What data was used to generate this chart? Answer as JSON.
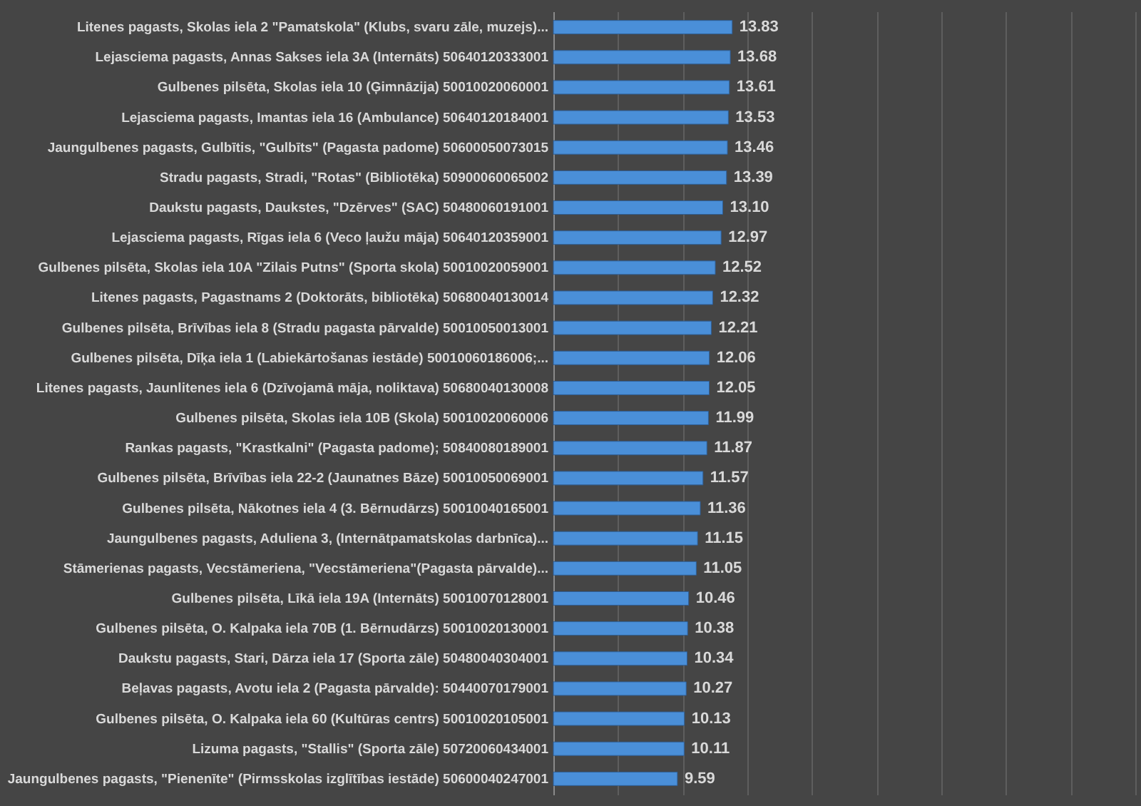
{
  "chart_data": {
    "type": "bar",
    "orientation": "horizontal",
    "categories": [
      "Litenes pagasts, Skolas iela 2 \"Pamatskola\" (Klubs, svaru zāle, muzejs)...",
      "Lejasciema pagasts, Annas Sakses iela 3A (Internāts) 50640120333001",
      "Gulbenes pilsēta, Skolas iela 10 (Ģimnāzija) 50010020060001",
      "Lejasciema pagasts, Imantas iela 16 (Ambulance) 50640120184001",
      "Jaungulbenes pagasts, Gulbītis, \"Gulbīts\" (Pagasta padome) 50600050073015",
      "Stradu pagasts, Stradi, \"Rotas\" (Bibliotēka) 50900060065002",
      "Daukstu pagasts, Daukstes, \"Dzērves\" (SAC) 50480060191001",
      "Lejasciema pagasts, Rīgas iela 6 (Veco ļaužu māja) 50640120359001",
      "Gulbenes pilsēta, Skolas iela 10A \"Zilais Putns\" (Sporta skola) 50010020059001",
      "Litenes pagasts, Pagastnams 2 (Doktorāts, bibliotēka) 50680040130014",
      "Gulbenes pilsēta, Brīvības iela 8 (Stradu pagasta pārvalde) 50010050013001",
      "Gulbenes pilsēta, Dīķa iela 1 (Labiekārtošanas iestāde) 50010060186006;...",
      "Litenes pagasts, Jaunlitenes iela 6 (Dzīvojamā māja, noliktava) 50680040130008",
      "Gulbenes pilsēta, Skolas iela 10B (Skola) 50010020060006",
      "Rankas pagasts, \"Krastkalni\" (Pagasta padome); 50840080189001",
      "Gulbenes pilsēta, Brīvības iela 22-2 (Jaunatnes Bāze) 50010050069001",
      "Gulbenes pilsēta, Nākotnes iela 4 (3. Bērnudārzs) 50010040165001",
      "Jaungulbenes pagasts, Aduliena 3, (Internātpamatskolas darbnīca)...",
      "Stāmerienas pagasts, Vecstāmeriena, \"Vecstāmeriena\"(Pagasta pārvalde)...",
      "Gulbenes pilsēta, Līkā iela 19A (Internāts) 50010070128001",
      "Gulbenes pilsēta, O. Kalpaka iela 70B (1. Bērnudārzs) 50010020130001",
      "Daukstu pagasts, Stari, Dārza iela 17 (Sporta zāle) 50480040304001",
      "Beļavas pagasts, Avotu iela 2 (Pagasta pārvalde): 50440070179001",
      "Gulbenes pilsēta, O. Kalpaka iela 60 (Kultūras centrs) 50010020105001",
      "Lizuma pagasts, \"Stallis\" (Sporta zāle) 50720060434001",
      "Jaungulbenes pagasts, \"Pienenīte\" (Pirmsskolas izglītības iestāde) 50600040247001"
    ],
    "values": [
      13.83,
      13.68,
      13.61,
      13.53,
      13.46,
      13.39,
      13.1,
      12.97,
      12.52,
      12.32,
      12.21,
      12.06,
      12.05,
      11.99,
      11.87,
      11.57,
      11.36,
      11.15,
      11.05,
      10.46,
      10.38,
      10.34,
      10.27,
      10.13,
      10.11,
      9.59
    ],
    "value_labels": [
      "13.83",
      "13.68",
      "13.61",
      "13.53",
      "13.46",
      "13.39",
      "13.10",
      "12.97",
      "12.52",
      "12.32",
      "12.21",
      "12.06",
      "12.05",
      "11.99",
      "11.87",
      "11.57",
      "11.36",
      "11.15",
      "11.05",
      "10.46",
      "10.38",
      "10.34",
      "10.27",
      "10.13",
      "10.11",
      "9.59"
    ],
    "color": "#4a8fd8",
    "xlim": [
      0,
      45
    ],
    "xticks": [
      {
        "value": 0,
        "label": null
      },
      {
        "value": 5,
        "label": null
      },
      {
        "value": 10,
        "label": null
      },
      {
        "value": 15,
        "label": null
      },
      {
        "value": 20,
        "label": null
      },
      {
        "value": 25,
        "label": null
      },
      {
        "value": 30,
        "label": null
      },
      {
        "value": 35,
        "label": null
      },
      {
        "value": 40,
        "label": null
      },
      {
        "value": 45,
        "label": null
      }
    ],
    "grid": "x",
    "tick_labels": "y"
  }
}
